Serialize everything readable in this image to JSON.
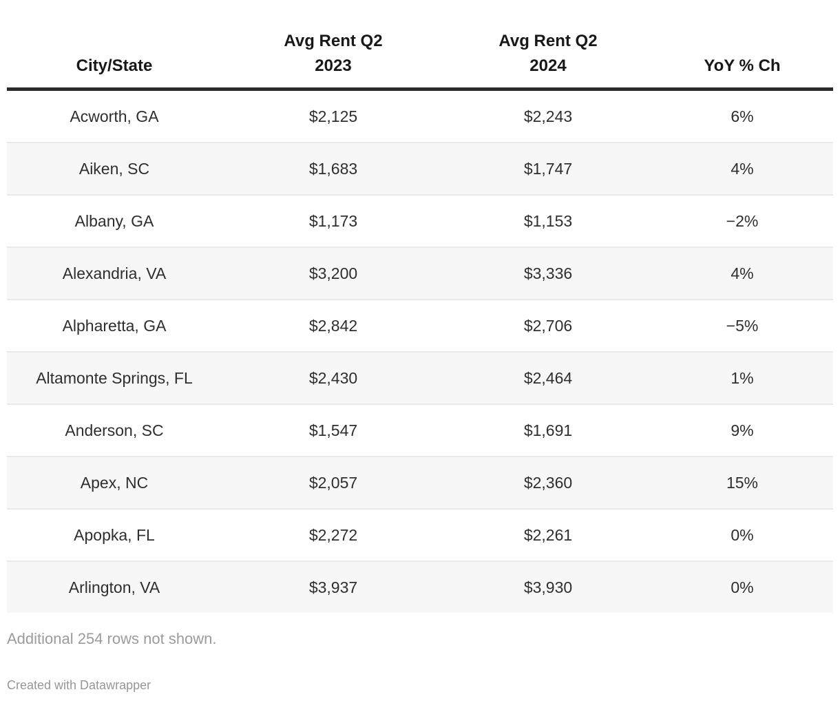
{
  "chart_data": {
    "type": "table",
    "columns": [
      "City/State",
      "Avg Rent Q2 2023",
      "Avg Rent Q2 2024",
      "YoY % Ch"
    ],
    "rows": [
      [
        "Acworth, GA",
        "$2,125",
        "$2,243",
        "6%"
      ],
      [
        "Aiken, SC",
        "$1,683",
        "$1,747",
        "4%"
      ],
      [
        "Albany, GA",
        "$1,173",
        "$1,153",
        "−2%"
      ],
      [
        "Alexandria, VA",
        "$3,200",
        "$3,336",
        "4%"
      ],
      [
        "Alpharetta, GA",
        "$2,842",
        "$2,706",
        "−5%"
      ],
      [
        "Altamonte Springs, FL",
        "$2,430",
        "$2,464",
        "1%"
      ],
      [
        "Anderson, SC",
        "$1,547",
        "$1,691",
        "9%"
      ],
      [
        "Apex, NC",
        "$2,057",
        "$2,360",
        "15%"
      ],
      [
        "Apopka, FL",
        "$2,272",
        "$2,261",
        "0%"
      ],
      [
        "Arlington, VA",
        "$3,937",
        "$3,930",
        "0%"
      ]
    ],
    "rows_numeric": {
      "avg_rent_q2_2023": [
        2125,
        1683,
        1173,
        3200,
        2842,
        2430,
        1547,
        2057,
        2272,
        3937
      ],
      "avg_rent_q2_2024": [
        2243,
        1747,
        1153,
        3336,
        2706,
        2464,
        1691,
        2360,
        2261,
        3930
      ],
      "yoy_pct_change": [
        6,
        4,
        -2,
        4,
        -5,
        1,
        9,
        15,
        0,
        0
      ]
    }
  },
  "footer": {
    "note": "Additional 254 rows not shown.",
    "attribution": "Created with Datawrapper"
  },
  "colors": {
    "header_text": "#181818",
    "header_rule": "#2b2b2b",
    "body_text": "#2e2e2e",
    "row_stripe": "#f7f7f7",
    "row_border": "#e9e9e9",
    "footer_text": "#9b9b9b"
  }
}
